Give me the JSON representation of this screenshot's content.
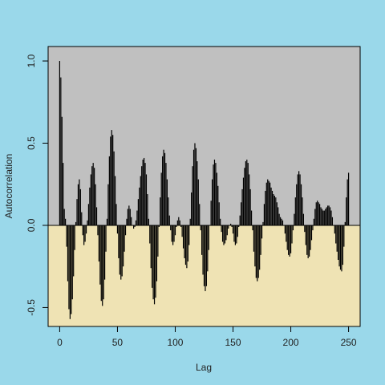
{
  "chart_data": {
    "type": "bar",
    "xlabel": "Lag",
    "ylabel": "Autocorrelation",
    "x": [
      0,
      1,
      2,
      3,
      4,
      5,
      6,
      7,
      8,
      9,
      10,
      11,
      12,
      13,
      14,
      15,
      16,
      17,
      18,
      19,
      20,
      21,
      22,
      23,
      24,
      25,
      26,
      27,
      28,
      29,
      30,
      31,
      32,
      33,
      34,
      35,
      36,
      37,
      38,
      39,
      40,
      41,
      42,
      43,
      44,
      45,
      46,
      47,
      48,
      49,
      50,
      51,
      52,
      53,
      54,
      55,
      56,
      57,
      58,
      59,
      60,
      61,
      62,
      63,
      64,
      65,
      66,
      67,
      68,
      69,
      70,
      71,
      72,
      73,
      74,
      75,
      76,
      77,
      78,
      79,
      80,
      81,
      82,
      83,
      84,
      85,
      86,
      87,
      88,
      89,
      90,
      91,
      92,
      93,
      94,
      95,
      96,
      97,
      98,
      99,
      100,
      101,
      102,
      103,
      104,
      105,
      106,
      107,
      108,
      109,
      110,
      111,
      112,
      113,
      114,
      115,
      116,
      117,
      118,
      119,
      120,
      121,
      122,
      123,
      124,
      125,
      126,
      127,
      128,
      129,
      130,
      131,
      132,
      133,
      134,
      135,
      136,
      137,
      138,
      139,
      140,
      141,
      142,
      143,
      144,
      145,
      146,
      147,
      148,
      149,
      150,
      151,
      152,
      153,
      154,
      155,
      156,
      157,
      158,
      159,
      160,
      161,
      162,
      163,
      164,
      165,
      166,
      167,
      168,
      169,
      170,
      171,
      172,
      173,
      174,
      175,
      176,
      177,
      178,
      179,
      180,
      181,
      182,
      183,
      184,
      185,
      186,
      187,
      188,
      189,
      190,
      191,
      192,
      193,
      194,
      195,
      196,
      197,
      198,
      199,
      200,
      201,
      202,
      203,
      204,
      205,
      206,
      207,
      208,
      209,
      210,
      211,
      212,
      213,
      214,
      215,
      216,
      217,
      218,
      219,
      220,
      221,
      222,
      223,
      224,
      225,
      226,
      227,
      228,
      229,
      230,
      231,
      232,
      233,
      234,
      235,
      236,
      237,
      238,
      239,
      240,
      241,
      242,
      243,
      244,
      245,
      246,
      247,
      248,
      249,
      250
    ],
    "values": [
      1.0,
      0.9,
      0.66,
      0.38,
      0.1,
      0.04,
      -0.13,
      -0.34,
      -0.51,
      -0.57,
      -0.54,
      -0.45,
      -0.31,
      -0.15,
      0.02,
      0.16,
      0.25,
      0.28,
      0.22,
      0.08,
      -0.06,
      -0.12,
      -0.1,
      -0.05,
      0.03,
      0.13,
      0.23,
      0.31,
      0.36,
      0.38,
      0.35,
      0.25,
      0.11,
      -0.06,
      -0.22,
      -0.36,
      -0.46,
      -0.49,
      -0.45,
      -0.33,
      -0.16,
      0.04,
      0.25,
      0.42,
      0.54,
      0.58,
      0.55,
      0.45,
      0.3,
      0.13,
      -0.05,
      -0.2,
      -0.3,
      -0.33,
      -0.31,
      -0.25,
      -0.16,
      -0.06,
      0.04,
      0.1,
      0.12,
      0.1,
      0.05,
      0.0,
      -0.02,
      -0.01,
      0.03,
      0.09,
      0.16,
      0.23,
      0.3,
      0.36,
      0.4,
      0.41,
      0.38,
      0.31,
      0.19,
      0.04,
      -0.11,
      -0.26,
      -0.38,
      -0.45,
      -0.48,
      -0.44,
      -0.34,
      -0.19,
      -0.01,
      0.17,
      0.32,
      0.42,
      0.46,
      0.44,
      0.38,
      0.28,
      0.17,
      0.06,
      -0.03,
      -0.1,
      -0.12,
      -0.1,
      -0.06,
      -0.01,
      0.03,
      0.05,
      0.03,
      -0.01,
      -0.07,
      -0.14,
      -0.2,
      -0.24,
      -0.26,
      -0.22,
      -0.12,
      0.04,
      0.2,
      0.36,
      0.46,
      0.5,
      0.47,
      0.39,
      0.28,
      0.13,
      -0.03,
      -0.18,
      -0.3,
      -0.37,
      -0.4,
      -0.37,
      -0.28,
      -0.15,
      0.0,
      0.15,
      0.28,
      0.37,
      0.4,
      0.38,
      0.32,
      0.24,
      0.14,
      0.04,
      -0.04,
      -0.1,
      -0.12,
      -0.11,
      -0.09,
      -0.06,
      -0.02,
      0.0,
      0.01,
      -0.01,
      -0.05,
      -0.1,
      -0.12,
      -0.11,
      -0.07,
      -0.01,
      0.06,
      0.14,
      0.22,
      0.29,
      0.35,
      0.39,
      0.4,
      0.38,
      0.31,
      0.22,
      0.09,
      -0.03,
      -0.16,
      -0.25,
      -0.32,
      -0.34,
      -0.32,
      -0.27,
      -0.18,
      -0.08,
      0.02,
      0.13,
      0.21,
      0.26,
      0.28,
      0.27,
      0.26,
      0.23,
      0.21,
      0.19,
      0.18,
      0.17,
      0.14,
      0.11,
      0.07,
      0.05,
      0.04,
      0.03,
      0.0,
      -0.05,
      -0.1,
      -0.15,
      -0.18,
      -0.19,
      -0.17,
      -0.11,
      -0.03,
      0.07,
      0.17,
      0.25,
      0.31,
      0.33,
      0.31,
      0.25,
      0.17,
      0.07,
      -0.04,
      -0.12,
      -0.18,
      -0.2,
      -0.19,
      -0.15,
      -0.09,
      -0.03,
      0.04,
      0.1,
      0.14,
      0.15,
      0.14,
      0.13,
      0.11,
      0.1,
      0.09,
      0.09,
      0.1,
      0.11,
      0.12,
      0.12,
      0.11,
      0.09,
      0.05,
      0.0,
      -0.05,
      -0.11,
      -0.16,
      -0.21,
      -0.25,
      -0.27,
      -0.28,
      -0.24,
      -0.13,
      0.02,
      0.17,
      0.28,
      0.32
    ],
    "color": "#000000",
    "xlim": [
      -10,
      260
    ],
    "ylim": [
      -0.615,
      1.088
    ],
    "xticks": [
      0,
      50,
      100,
      150,
      200,
      250
    ],
    "yticks": [
      -0.5,
      {
        "value": 0,
        "label": "0.0"
      },
      0.5,
      {
        "value": 1,
        "label": "1.0"
      }
    ]
  }
}
